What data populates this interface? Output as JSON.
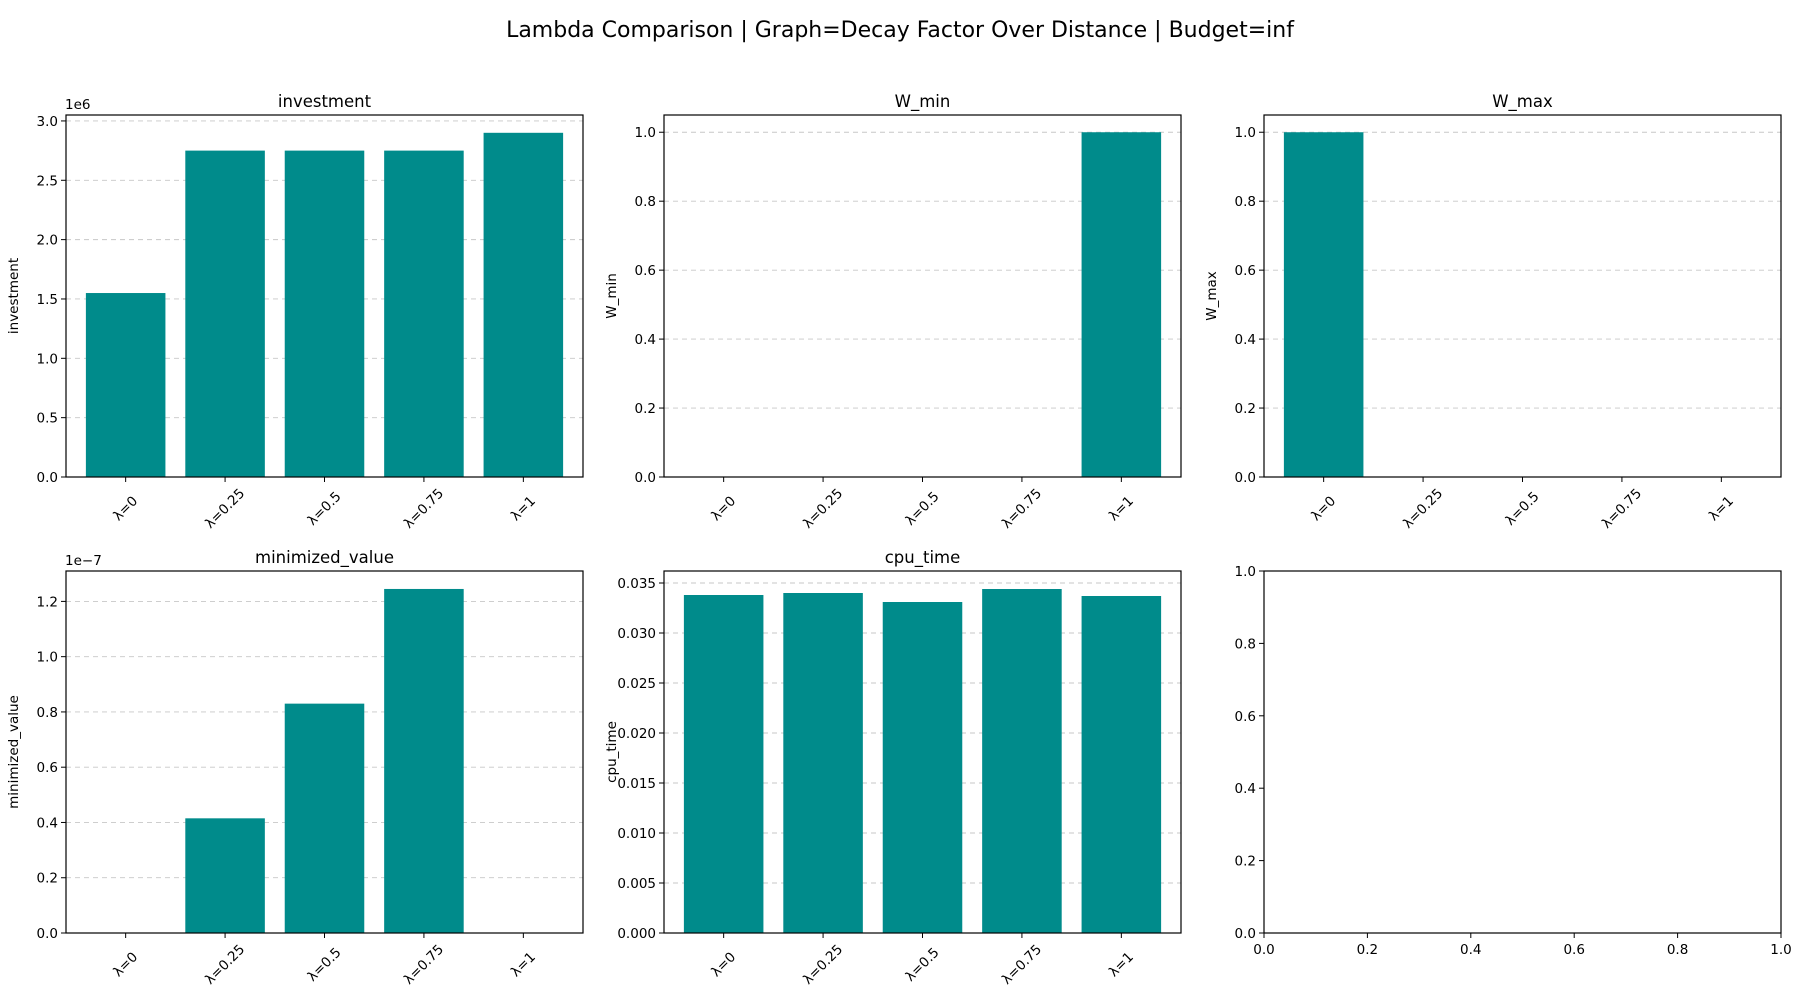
{
  "figure": {
    "title": "Lambda Comparison | Graph=Decay Factor Over Distance | Budget=inf",
    "bar_color": "#008B8B"
  },
  "chart_data": [
    {
      "type": "bar",
      "title": "investment",
      "ylabel": "investment",
      "categories": [
        "λ=0",
        "λ=0.25",
        "λ=0.5",
        "λ=0.75",
        "λ=1"
      ],
      "values": [
        1550000,
        2750000,
        2750000,
        2750000,
        2900000
      ],
      "ylim": [
        0,
        3050000
      ],
      "yticks": [
        0,
        500000,
        1000000,
        1500000,
        2000000,
        2500000,
        3000000
      ],
      "ytick_labels": [
        "0.0",
        "0.5",
        "1.0",
        "1.5",
        "2.0",
        "2.5",
        "3.0"
      ],
      "offset_text": "1e6",
      "grid": "y"
    },
    {
      "type": "bar",
      "title": "W_min",
      "ylabel": "W_min",
      "categories": [
        "λ=0",
        "λ=0.25",
        "λ=0.5",
        "λ=0.75",
        "λ=1"
      ],
      "values": [
        0,
        0,
        0,
        0,
        1.0
      ],
      "ylim": [
        0,
        1.05
      ],
      "yticks": [
        0,
        0.2,
        0.4,
        0.6,
        0.8,
        1.0
      ],
      "ytick_labels": [
        "0.0",
        "0.2",
        "0.4",
        "0.6",
        "0.8",
        "1.0"
      ],
      "grid": "y"
    },
    {
      "type": "bar",
      "title": "W_max",
      "ylabel": "W_max",
      "categories": [
        "λ=0",
        "λ=0.25",
        "λ=0.5",
        "λ=0.75",
        "λ=1"
      ],
      "values": [
        1.0,
        0,
        0,
        0,
        0
      ],
      "ylim": [
        0,
        1.05
      ],
      "yticks": [
        0,
        0.2,
        0.4,
        0.6,
        0.8,
        1.0
      ],
      "ytick_labels": [
        "0.0",
        "0.2",
        "0.4",
        "0.6",
        "0.8",
        "1.0"
      ],
      "grid": "y"
    },
    {
      "type": "bar",
      "title": "minimized_value",
      "ylabel": "minimized_value",
      "categories": [
        "λ=0",
        "λ=0.25",
        "λ=0.5",
        "λ=0.75",
        "λ=1"
      ],
      "values": [
        0,
        4.15e-08,
        8.3e-08,
        1.245e-07,
        0
      ],
      "ylim": [
        0,
        1.31e-07
      ],
      "yticks": [
        0,
        2e-08,
        4e-08,
        6e-08,
        8e-08,
        1e-07,
        1.2e-07
      ],
      "ytick_labels": [
        "0.0",
        "0.2",
        "0.4",
        "0.6",
        "0.8",
        "1.0",
        "1.2"
      ],
      "offset_text": "1e−7",
      "grid": "y"
    },
    {
      "type": "bar",
      "title": "cpu_time",
      "ylabel": "cpu_time",
      "categories": [
        "λ=0",
        "λ=0.25",
        "λ=0.5",
        "λ=0.75",
        "λ=1"
      ],
      "values": [
        0.0338,
        0.034,
        0.0331,
        0.0344,
        0.0337
      ],
      "ylim": [
        0,
        0.0362
      ],
      "yticks": [
        0,
        0.005,
        0.01,
        0.015,
        0.02,
        0.025,
        0.03,
        0.035
      ],
      "ytick_labels": [
        "0.000",
        "0.005",
        "0.010",
        "0.015",
        "0.020",
        "0.025",
        "0.030",
        "0.035"
      ],
      "grid": "y"
    },
    {
      "type": "bar",
      "title": "",
      "ylabel": "",
      "categories": [],
      "values": [],
      "xlim": [
        0,
        1
      ],
      "ylim": [
        0,
        1
      ],
      "xticks": [
        0,
        0.2,
        0.4,
        0.6,
        0.8,
        1.0
      ],
      "xtick_labels": [
        "0.0",
        "0.2",
        "0.4",
        "0.6",
        "0.8",
        "1.0"
      ],
      "yticks": [
        0,
        0.2,
        0.4,
        0.6,
        0.8,
        1.0
      ],
      "ytick_labels": [
        "0.0",
        "0.2",
        "0.4",
        "0.6",
        "0.8",
        "1.0"
      ],
      "grid": "none"
    }
  ]
}
